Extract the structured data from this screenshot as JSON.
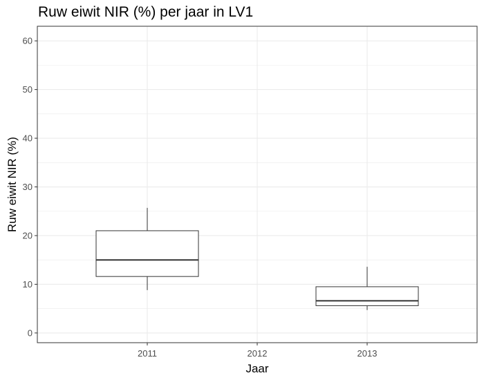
{
  "chart_data": {
    "type": "boxplot",
    "title": "Ruw eiwit NIR (%) per jaar in LV1",
    "xlabel": "Jaar",
    "ylabel": "Ruw eiwit NIR (%)",
    "categories": [
      "2011",
      "2012",
      "2013"
    ],
    "boxes": [
      {
        "category": "2011",
        "whisker_low": 8.8,
        "q1": 11.6,
        "median": 15.0,
        "q3": 21.0,
        "whisker_high": 25.7
      },
      {
        "category": "2013",
        "whisker_low": 4.7,
        "q1": 5.6,
        "median": 6.6,
        "q3": 9.5,
        "whisker_high": 13.6
      }
    ],
    "ylim": [
      -2,
      63
    ],
    "y_ticks": [
      0,
      10,
      20,
      30,
      40,
      50,
      60
    ],
    "y_tick_labels": [
      "0",
      "10",
      "20",
      "30",
      "40",
      "50",
      "60"
    ],
    "grid": true,
    "colors": {
      "background": "#ffffff",
      "grid": "#ebebeb",
      "panel_border": "#333333",
      "box_line": "#333333",
      "box_fill": "#ffffff",
      "tick_text": "#4d4d4d"
    }
  }
}
